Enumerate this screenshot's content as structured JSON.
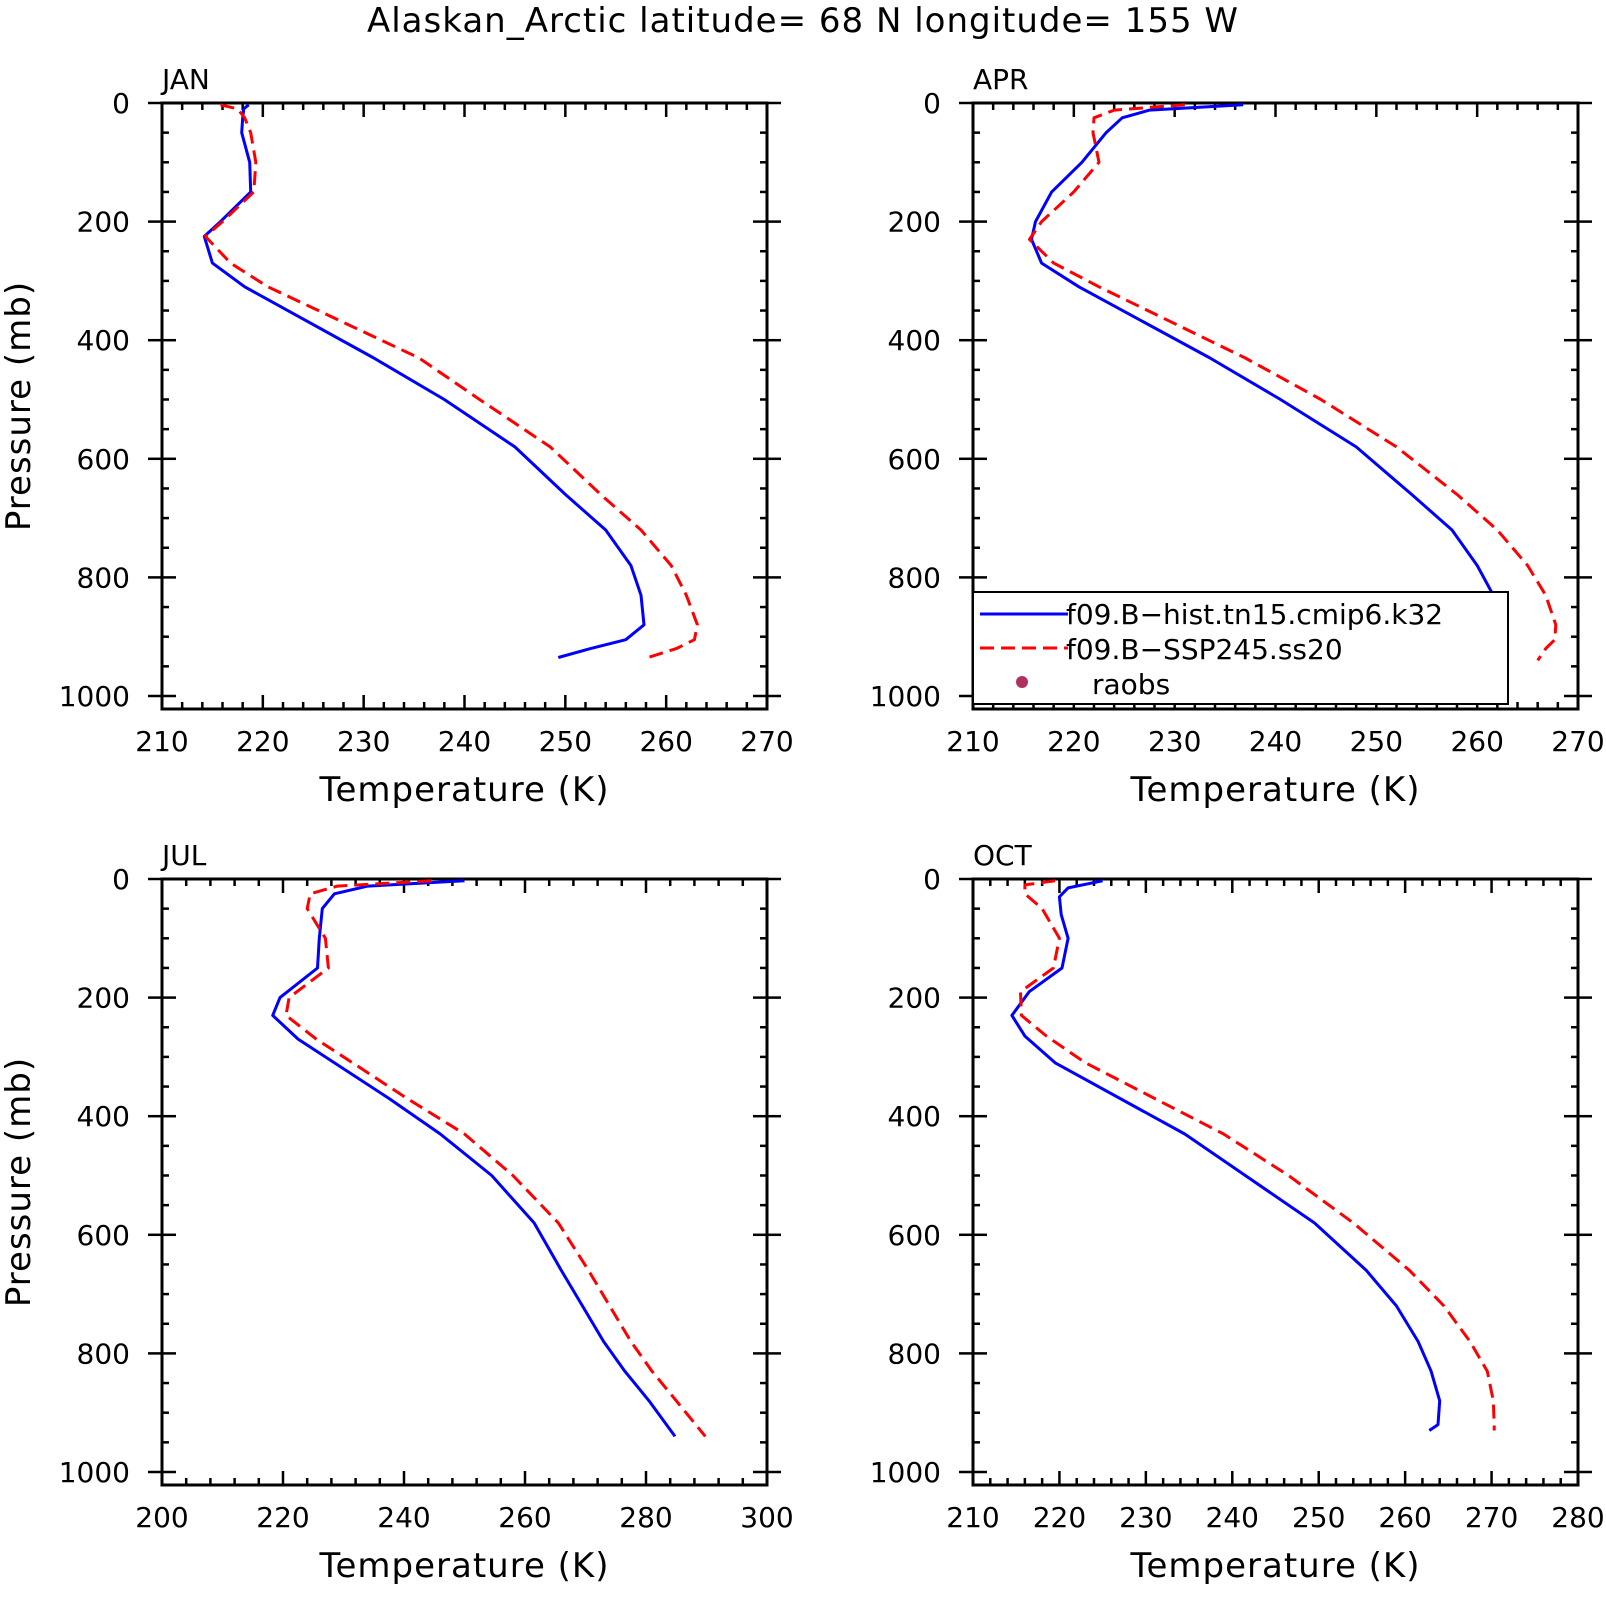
{
  "title": "Alaskan_Arctic  latitude= 68 N longitude= 155 W",
  "colors": {
    "hist": "#0000ff",
    "ssp": "#ff0000",
    "raobs": "#b03060"
  },
  "legend": {
    "entries": [
      {
        "label": "f09.B−hist.tn15.cmip6.k32",
        "style": "solid-blue"
      },
      {
        "label": "f09.B−SSP245.ss20",
        "style": "dashed-red"
      },
      {
        "label": "raobs",
        "style": "dot"
      }
    ]
  },
  "chart_data": [
    {
      "type": "line",
      "panel": "JAN",
      "xlabel": "Temperature (K)",
      "ylabel": "Pressure (mb)",
      "xlim": [
        210,
        270
      ],
      "xticks": [
        210,
        220,
        230,
        240,
        250,
        260,
        270
      ],
      "ylim": [
        0,
        1000
      ],
      "yticks": [
        0,
        200,
        400,
        600,
        800,
        1000
      ],
      "y_inverted": true,
      "series": [
        {
          "key": "hist",
          "y": [
            3,
            10,
            25,
            50,
            100,
            150,
            200,
            225,
            270,
            310,
            430,
            500,
            580,
            660,
            720,
            780,
            830,
            880,
            905,
            920,
            935
          ],
          "x": [
            218.6,
            218.1,
            218.0,
            217.9,
            218.7,
            218.8,
            215.8,
            214.2,
            215.0,
            218.2,
            231.0,
            238.0,
            245.0,
            250.0,
            254.0,
            256.5,
            257.5,
            257.8,
            256.0,
            252.5,
            249.3
          ]
        },
        {
          "key": "ssp",
          "y": [
            3,
            10,
            25,
            50,
            100,
            150,
            200,
            225,
            270,
            310,
            430,
            500,
            580,
            660,
            720,
            780,
            830,
            880,
            905,
            920,
            935
          ],
          "x": [
            215.8,
            217.5,
            218.2,
            218.8,
            219.3,
            219.1,
            216.0,
            214.3,
            216.8,
            220.5,
            235.5,
            241.5,
            248.5,
            253.5,
            257.5,
            260.5,
            262.0,
            263.1,
            262.8,
            261.0,
            258.2
          ]
        }
      ]
    },
    {
      "type": "line",
      "panel": "APR",
      "xlabel": "Temperature (K)",
      "ylabel": "",
      "xlim": [
        210,
        270
      ],
      "xticks": [
        210,
        220,
        230,
        240,
        250,
        260,
        270
      ],
      "ylim": [
        0,
        1000
      ],
      "yticks": [
        0,
        200,
        400,
        600,
        800,
        1000
      ],
      "y_inverted": true,
      "series": [
        {
          "key": "hist",
          "y": [
            3,
            12,
            25,
            50,
            100,
            150,
            200,
            230,
            270,
            310,
            430,
            500,
            580,
            660,
            720,
            780,
            830,
            880,
            905,
            920,
            940
          ],
          "x": [
            236.8,
            227.5,
            224.8,
            223.2,
            220.8,
            217.8,
            216.2,
            215.8,
            216.8,
            220.5,
            233.5,
            240.5,
            248.0,
            253.5,
            257.5,
            260.0,
            261.6,
            262.3,
            262.3,
            261.5,
            260.0
          ]
        },
        {
          "key": "ssp",
          "y": [
            3,
            12,
            25,
            50,
            100,
            150,
            200,
            230,
            270,
            310,
            430,
            500,
            580,
            660,
            720,
            780,
            830,
            880,
            905,
            920,
            940
          ],
          "x": [
            231.0,
            224.0,
            222.0,
            221.9,
            222.5,
            220.0,
            216.8,
            215.6,
            218.0,
            222.5,
            237.0,
            244.5,
            252.0,
            258.0,
            262.0,
            265.0,
            266.8,
            267.8,
            267.7,
            266.8,
            266.0
          ]
        }
      ]
    },
    {
      "type": "line",
      "panel": "JUL",
      "xlabel": "Temperature (K)",
      "ylabel": "Pressure (mb)",
      "xlim": [
        200,
        300
      ],
      "xticks": [
        200,
        220,
        240,
        260,
        280,
        300
      ],
      "ylim": [
        0,
        1000
      ],
      "yticks": [
        0,
        200,
        400,
        600,
        800,
        1000
      ],
      "y_inverted": true,
      "series": [
        {
          "key": "hist",
          "y": [
            3,
            12,
            25,
            50,
            100,
            150,
            200,
            230,
            270,
            370,
            430,
            500,
            580,
            660,
            720,
            780,
            830,
            880,
            940
          ],
          "x": [
            250.0,
            234.0,
            228.5,
            226.5,
            226.0,
            225.7,
            219.5,
            218.3,
            222.5,
            237.5,
            246.0,
            254.5,
            261.5,
            266.0,
            269.5,
            273.0,
            276.5,
            280.5,
            284.8
          ]
        },
        {
          "key": "ssp",
          "y": [
            3,
            12,
            25,
            50,
            100,
            150,
            200,
            230,
            270,
            370,
            430,
            500,
            580,
            660,
            720,
            780,
            830,
            880,
            940
          ],
          "x": [
            244.5,
            229.0,
            224.5,
            224.0,
            227.0,
            227.5,
            221.0,
            220.5,
            225.5,
            240.5,
            250.0,
            258.0,
            265.5,
            270.5,
            274.0,
            277.5,
            281.0,
            285.0,
            289.8
          ]
        }
      ]
    },
    {
      "type": "line",
      "panel": "OCT",
      "xlabel": "Temperature (K)",
      "ylabel": "",
      "xlim": [
        210,
        280
      ],
      "xticks": [
        210,
        220,
        230,
        240,
        250,
        260,
        270,
        280
      ],
      "ylim": [
        0,
        1000
      ],
      "yticks": [
        0,
        200,
        400,
        600,
        800,
        1000
      ],
      "y_inverted": true,
      "series": [
        {
          "key": "hist",
          "y": [
            3,
            15,
            30,
            60,
            100,
            150,
            190,
            230,
            265,
            310,
            430,
            500,
            580,
            660,
            720,
            780,
            830,
            880,
            920,
            930
          ],
          "x": [
            225.0,
            221.0,
            220.0,
            220.2,
            221.0,
            220.3,
            216.5,
            214.5,
            216.0,
            219.5,
            234.5,
            241.5,
            249.5,
            255.5,
            259.0,
            261.5,
            263.0,
            264.0,
            263.8,
            262.8
          ]
        },
        {
          "key": "ssp",
          "y": [
            3,
            10,
            25,
            50,
            100,
            150,
            190,
            230,
            265,
            310,
            430,
            500,
            580,
            660,
            720,
            780,
            830,
            880,
            920,
            930
          ],
          "x": [
            219.5,
            216.0,
            216.0,
            218.0,
            220.0,
            219.3,
            215.5,
            215.6,
            218.5,
            223.0,
            239.0,
            246.5,
            254.0,
            260.5,
            264.5,
            267.5,
            269.5,
            270.2,
            270.3,
            270.3
          ]
        }
      ]
    }
  ]
}
